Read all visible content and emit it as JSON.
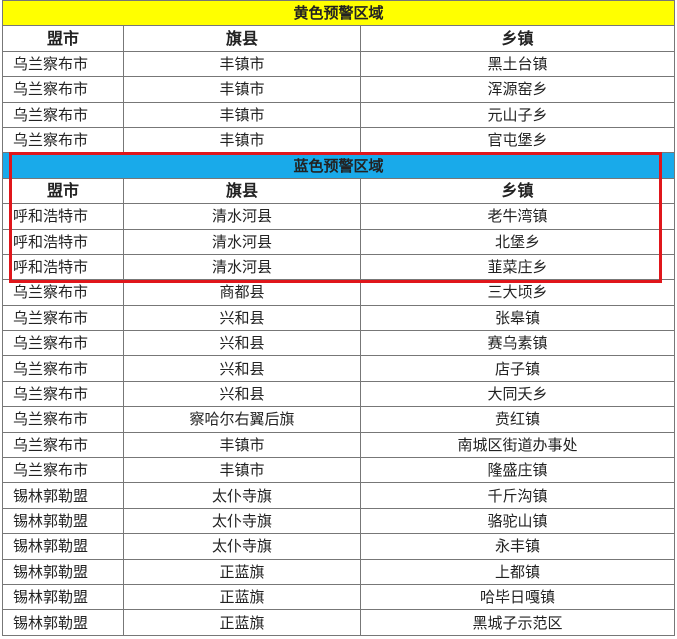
{
  "yellow_section": {
    "title": "黄色预警区域",
    "headers": [
      "盟市",
      "旗县",
      "乡镇"
    ],
    "rows": [
      [
        "乌兰察布市",
        "丰镇市",
        "黑土台镇"
      ],
      [
        "乌兰察布市",
        "丰镇市",
        "浑源窑乡"
      ],
      [
        "乌兰察布市",
        "丰镇市",
        "元山子乡"
      ],
      [
        "乌兰察布市",
        "丰镇市",
        "官屯堡乡"
      ]
    ]
  },
  "blue_section": {
    "title": "蓝色预警区域",
    "headers": [
      "盟市",
      "旗县",
      "乡镇"
    ],
    "rows": [
      [
        "呼和浩特市",
        "清水河县",
        "老牛湾镇"
      ],
      [
        "呼和浩特市",
        "清水河县",
        "北堡乡"
      ],
      [
        "呼和浩特市",
        "清水河县",
        "韮菜庄乡"
      ],
      [
        "乌兰察布市",
        "商都县",
        "三大顷乡"
      ],
      [
        "乌兰察布市",
        "兴和县",
        "张皋镇"
      ],
      [
        "乌兰察布市",
        "兴和县",
        "赛乌素镇"
      ],
      [
        "乌兰察布市",
        "兴和县",
        "店子镇"
      ],
      [
        "乌兰察布市",
        "兴和县",
        "大同夭乡"
      ],
      [
        "乌兰察布市",
        "察哈尔右翼后旗",
        "贲红镇"
      ],
      [
        "乌兰察布市",
        "丰镇市",
        "南城区街道办事处"
      ],
      [
        "乌兰察布市",
        "丰镇市",
        "隆盛庄镇"
      ],
      [
        "锡林郭勒盟",
        "太仆寺旗",
        "千斤沟镇"
      ],
      [
        "锡林郭勒盟",
        "太仆寺旗",
        "骆驼山镇"
      ],
      [
        "锡林郭勒盟",
        "太仆寺旗",
        "永丰镇"
      ],
      [
        "锡林郭勒盟",
        "正蓝旗",
        "上都镇"
      ],
      [
        "锡林郭勒盟",
        "正蓝旗",
        "哈毕日嘎镇"
      ],
      [
        "锡林郭勒盟",
        "正蓝旗",
        "黑城子示范区"
      ]
    ]
  },
  "colors": {
    "yellow": "#ffff00",
    "blue": "#19aaea",
    "highlight": "#e0161b"
  }
}
